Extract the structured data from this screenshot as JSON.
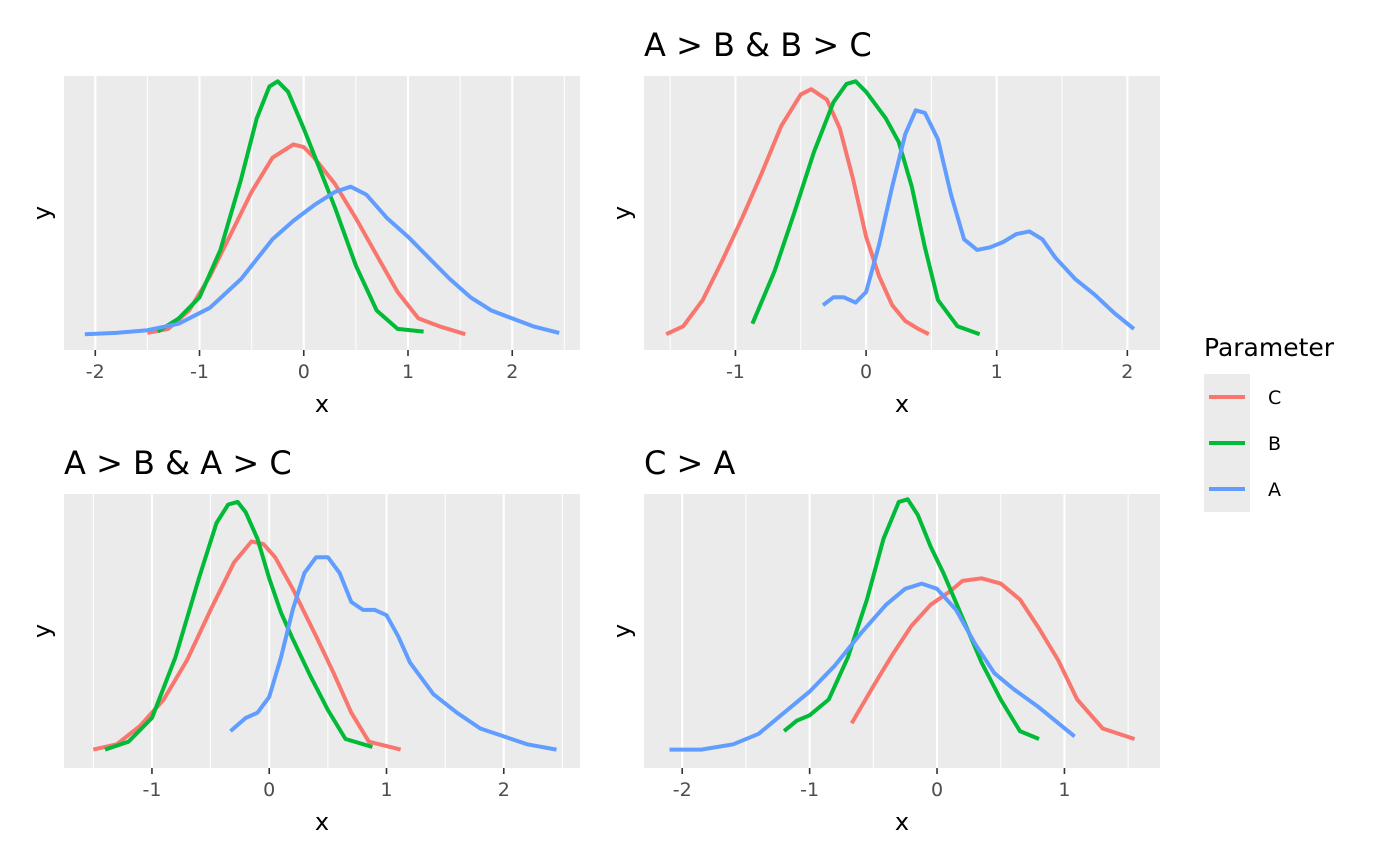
{
  "colors": {
    "C": "#F8766D",
    "B": "#00BA38",
    "A": "#619CFF"
  },
  "legend": {
    "title": "Parameter",
    "entries": [
      {
        "key": "C",
        "label": "C"
      },
      {
        "key": "B",
        "label": "B"
      },
      {
        "key": "A",
        "label": "A"
      }
    ]
  },
  "chart_data": [
    {
      "type": "line",
      "title": "",
      "xlabel": "x",
      "ylabel": "y",
      "xlim": [
        -2.3,
        2.65
      ],
      "ylim": [
        -0.02,
        1.02
      ],
      "xticks": [
        -2,
        -1,
        0,
        1,
        2
      ],
      "series": [
        {
          "name": "C",
          "points": [
            [
              -1.5,
              0.045
            ],
            [
              -1.3,
              0.06
            ],
            [
              -1.1,
              0.13
            ],
            [
              -0.9,
              0.26
            ],
            [
              -0.7,
              0.42
            ],
            [
              -0.5,
              0.58
            ],
            [
              -0.3,
              0.71
            ],
            [
              -0.1,
              0.76
            ],
            [
              0.0,
              0.75
            ],
            [
              0.1,
              0.71
            ],
            [
              0.3,
              0.61
            ],
            [
              0.5,
              0.48
            ],
            [
              0.7,
              0.34
            ],
            [
              0.9,
              0.2
            ],
            [
              1.1,
              0.1
            ],
            [
              1.3,
              0.07
            ],
            [
              1.55,
              0.04
            ]
          ]
        },
        {
          "name": "B",
          "points": [
            [
              -1.4,
              0.05
            ],
            [
              -1.2,
              0.1
            ],
            [
              -1.0,
              0.18
            ],
            [
              -0.8,
              0.36
            ],
            [
              -0.6,
              0.63
            ],
            [
              -0.45,
              0.86
            ],
            [
              -0.33,
              0.98
            ],
            [
              -0.25,
              1.0
            ],
            [
              -0.15,
              0.96
            ],
            [
              0.0,
              0.82
            ],
            [
              0.1,
              0.72
            ],
            [
              0.3,
              0.52
            ],
            [
              0.5,
              0.3
            ],
            [
              0.7,
              0.13
            ],
            [
              0.9,
              0.06
            ],
            [
              1.15,
              0.05
            ]
          ]
        },
        {
          "name": "A",
          "points": [
            [
              -2.1,
              0.04
            ],
            [
              -1.8,
              0.045
            ],
            [
              -1.5,
              0.055
            ],
            [
              -1.2,
              0.08
            ],
            [
              -0.9,
              0.14
            ],
            [
              -0.6,
              0.25
            ],
            [
              -0.3,
              0.4
            ],
            [
              -0.1,
              0.47
            ],
            [
              0.1,
              0.53
            ],
            [
              0.3,
              0.58
            ],
            [
              0.45,
              0.6
            ],
            [
              0.6,
              0.57
            ],
            [
              0.8,
              0.48
            ],
            [
              1.0,
              0.41
            ],
            [
              1.2,
              0.33
            ],
            [
              1.4,
              0.25
            ],
            [
              1.6,
              0.18
            ],
            [
              1.8,
              0.13
            ],
            [
              2.0,
              0.1
            ],
            [
              2.2,
              0.07
            ],
            [
              2.45,
              0.045
            ]
          ]
        }
      ]
    },
    {
      "type": "line",
      "title": "A > B & B > C",
      "xlabel": "x",
      "ylabel": "y",
      "xlim": [
        -1.7,
        2.25
      ],
      "ylim": [
        -0.02,
        1.02
      ],
      "xticks": [
        -1,
        0,
        1,
        2
      ],
      "series": [
        {
          "name": "C",
          "points": [
            [
              -1.53,
              0.04
            ],
            [
              -1.4,
              0.07
            ],
            [
              -1.25,
              0.17
            ],
            [
              -1.1,
              0.32
            ],
            [
              -0.95,
              0.48
            ],
            [
              -0.8,
              0.65
            ],
            [
              -0.65,
              0.83
            ],
            [
              -0.5,
              0.95
            ],
            [
              -0.42,
              0.97
            ],
            [
              -0.3,
              0.93
            ],
            [
              -0.2,
              0.82
            ],
            [
              -0.1,
              0.63
            ],
            [
              0.0,
              0.41
            ],
            [
              0.1,
              0.26
            ],
            [
              0.2,
              0.15
            ],
            [
              0.3,
              0.09
            ],
            [
              0.4,
              0.06
            ],
            [
              0.48,
              0.04
            ]
          ]
        },
        {
          "name": "B",
          "points": [
            [
              -0.87,
              0.08
            ],
            [
              -0.7,
              0.28
            ],
            [
              -0.55,
              0.5
            ],
            [
              -0.4,
              0.73
            ],
            [
              -0.25,
              0.92
            ],
            [
              -0.15,
              0.99
            ],
            [
              -0.08,
              1.0
            ],
            [
              0.0,
              0.96
            ],
            [
              0.15,
              0.86
            ],
            [
              0.25,
              0.77
            ],
            [
              0.35,
              0.6
            ],
            [
              0.45,
              0.37
            ],
            [
              0.55,
              0.17
            ],
            [
              0.7,
              0.07
            ],
            [
              0.87,
              0.04
            ]
          ]
        },
        {
          "name": "A",
          "points": [
            [
              -0.33,
              0.15
            ],
            [
              -0.25,
              0.18
            ],
            [
              -0.17,
              0.18
            ],
            [
              -0.08,
              0.16
            ],
            [
              0.0,
              0.2
            ],
            [
              0.1,
              0.38
            ],
            [
              0.2,
              0.6
            ],
            [
              0.3,
              0.8
            ],
            [
              0.38,
              0.89
            ],
            [
              0.45,
              0.88
            ],
            [
              0.55,
              0.78
            ],
            [
              0.65,
              0.57
            ],
            [
              0.75,
              0.4
            ],
            [
              0.85,
              0.36
            ],
            [
              0.95,
              0.37
            ],
            [
              1.05,
              0.39
            ],
            [
              1.15,
              0.42
            ],
            [
              1.25,
              0.43
            ],
            [
              1.35,
              0.4
            ],
            [
              1.45,
              0.33
            ],
            [
              1.6,
              0.25
            ],
            [
              1.75,
              0.19
            ],
            [
              1.9,
              0.12
            ],
            [
              2.05,
              0.06
            ]
          ]
        }
      ]
    },
    {
      "type": "line",
      "title": "A > B & A > C",
      "xlabel": "x",
      "ylabel": "y",
      "xlim": [
        -1.75,
        2.65
      ],
      "ylim": [
        -0.02,
        1.02
      ],
      "xticks": [
        -1,
        0,
        1,
        2
      ],
      "series": [
        {
          "name": "C",
          "points": [
            [
              -1.5,
              0.05
            ],
            [
              -1.3,
              0.07
            ],
            [
              -1.1,
              0.14
            ],
            [
              -0.9,
              0.24
            ],
            [
              -0.7,
              0.39
            ],
            [
              -0.5,
              0.58
            ],
            [
              -0.3,
              0.76
            ],
            [
              -0.15,
              0.84
            ],
            [
              -0.05,
              0.83
            ],
            [
              0.05,
              0.78
            ],
            [
              0.2,
              0.66
            ],
            [
              0.4,
              0.48
            ],
            [
              0.55,
              0.34
            ],
            [
              0.7,
              0.19
            ],
            [
              0.85,
              0.08
            ],
            [
              1.12,
              0.05
            ]
          ]
        },
        {
          "name": "B",
          "points": [
            [
              -1.4,
              0.05
            ],
            [
              -1.2,
              0.08
            ],
            [
              -1.0,
              0.17
            ],
            [
              -0.8,
              0.4
            ],
            [
              -0.6,
              0.7
            ],
            [
              -0.45,
              0.91
            ],
            [
              -0.35,
              0.98
            ],
            [
              -0.27,
              0.99
            ],
            [
              -0.2,
              0.95
            ],
            [
              -0.1,
              0.85
            ],
            [
              0.0,
              0.7
            ],
            [
              0.1,
              0.57
            ],
            [
              0.2,
              0.47
            ],
            [
              0.35,
              0.33
            ],
            [
              0.5,
              0.2
            ],
            [
              0.65,
              0.09
            ],
            [
              0.88,
              0.06
            ]
          ]
        },
        {
          "name": "A",
          "points": [
            [
              -0.33,
              0.12
            ],
            [
              -0.2,
              0.17
            ],
            [
              -0.1,
              0.19
            ],
            [
              0.0,
              0.25
            ],
            [
              0.1,
              0.4
            ],
            [
              0.2,
              0.58
            ],
            [
              0.3,
              0.72
            ],
            [
              0.4,
              0.78
            ],
            [
              0.5,
              0.78
            ],
            [
              0.6,
              0.72
            ],
            [
              0.7,
              0.61
            ],
            [
              0.8,
              0.58
            ],
            [
              0.9,
              0.58
            ],
            [
              1.0,
              0.56
            ],
            [
              1.1,
              0.48
            ],
            [
              1.2,
              0.38
            ],
            [
              1.4,
              0.26
            ],
            [
              1.6,
              0.19
            ],
            [
              1.8,
              0.13
            ],
            [
              2.0,
              0.1
            ],
            [
              2.2,
              0.07
            ],
            [
              2.45,
              0.05
            ]
          ]
        }
      ]
    },
    {
      "type": "line",
      "title": "C > A",
      "xlabel": "x",
      "ylabel": "y",
      "xlim": [
        -2.3,
        1.75
      ],
      "ylim": [
        -0.02,
        1.02
      ],
      "xticks": [
        -2,
        -1,
        0,
        1
      ],
      "series": [
        {
          "name": "C",
          "points": [
            [
              -0.67,
              0.15
            ],
            [
              -0.5,
              0.29
            ],
            [
              -0.35,
              0.41
            ],
            [
              -0.2,
              0.52
            ],
            [
              -0.05,
              0.6
            ],
            [
              0.1,
              0.65
            ],
            [
              0.2,
              0.69
            ],
            [
              0.35,
              0.7
            ],
            [
              0.5,
              0.68
            ],
            [
              0.65,
              0.62
            ],
            [
              0.8,
              0.51
            ],
            [
              0.95,
              0.39
            ],
            [
              1.1,
              0.24
            ],
            [
              1.3,
              0.13
            ],
            [
              1.55,
              0.09
            ]
          ]
        },
        {
          "name": "B",
          "points": [
            [
              -1.2,
              0.12
            ],
            [
              -1.1,
              0.16
            ],
            [
              -1.0,
              0.18
            ],
            [
              -0.85,
              0.24
            ],
            [
              -0.7,
              0.4
            ],
            [
              -0.55,
              0.62
            ],
            [
              -0.42,
              0.85
            ],
            [
              -0.3,
              0.99
            ],
            [
              -0.23,
              1.0
            ],
            [
              -0.15,
              0.94
            ],
            [
              -0.05,
              0.82
            ],
            [
              0.05,
              0.72
            ],
            [
              0.2,
              0.55
            ],
            [
              0.35,
              0.38
            ],
            [
              0.5,
              0.24
            ],
            [
              0.65,
              0.12
            ],
            [
              0.8,
              0.09
            ]
          ]
        },
        {
          "name": "A",
          "points": [
            [
              -2.1,
              0.05
            ],
            [
              -1.85,
              0.05
            ],
            [
              -1.6,
              0.07
            ],
            [
              -1.4,
              0.11
            ],
            [
              -1.2,
              0.19
            ],
            [
              -1.0,
              0.27
            ],
            [
              -0.8,
              0.37
            ],
            [
              -0.6,
              0.49
            ],
            [
              -0.4,
              0.6
            ],
            [
              -0.25,
              0.66
            ],
            [
              -0.12,
              0.68
            ],
            [
              0.0,
              0.66
            ],
            [
              0.15,
              0.58
            ],
            [
              0.3,
              0.45
            ],
            [
              0.45,
              0.34
            ],
            [
              0.6,
              0.28
            ],
            [
              0.8,
              0.21
            ],
            [
              1.08,
              0.1
            ]
          ]
        }
      ]
    }
  ]
}
